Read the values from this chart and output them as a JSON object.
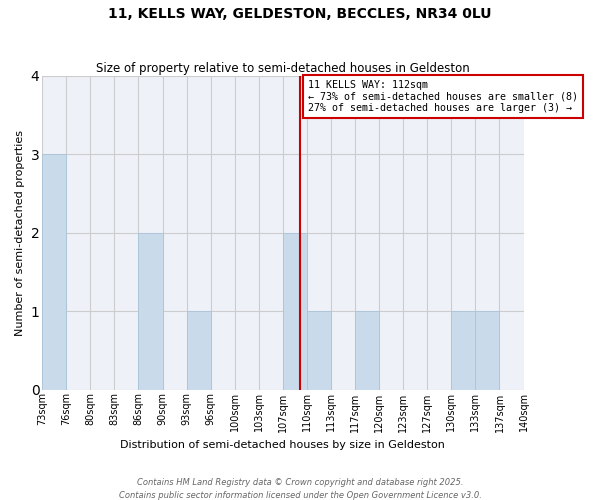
{
  "title1": "11, KELLS WAY, GELDESTON, BECCLES, NR34 0LU",
  "title2": "Size of property relative to semi-detached houses in Geldeston",
  "xlabel": "Distribution of semi-detached houses by size in Geldeston",
  "ylabel": "Number of semi-detached properties",
  "bins": [
    "73sqm",
    "76sqm",
    "80sqm",
    "83sqm",
    "86sqm",
    "90sqm",
    "93sqm",
    "96sqm",
    "100sqm",
    "103sqm",
    "107sqm",
    "110sqm",
    "113sqm",
    "117sqm",
    "120sqm",
    "123sqm",
    "127sqm",
    "130sqm",
    "133sqm",
    "137sqm",
    "140sqm"
  ],
  "heights": [
    3,
    0,
    0,
    0,
    2,
    0,
    1,
    0,
    0,
    0,
    2,
    1,
    0,
    1,
    0,
    0,
    0,
    1,
    1,
    0,
    0
  ],
  "property_size_idx": 10.73,
  "bar_color": "#c9daea",
  "bar_edge_color": "#aec6d8",
  "red_line_color": "#cc0000",
  "grid_color": "#cccccc",
  "background_color": "#eef2f8",
  "ylim": [
    0,
    4
  ],
  "yticks": [
    0,
    1,
    2,
    3,
    4
  ],
  "annotation_title": "11 KELLS WAY: 112sqm",
  "annotation_line1": "← 73% of semi-detached houses are smaller (8)",
  "annotation_line2": "27% of semi-detached houses are larger (3) →",
  "footer1": "Contains HM Land Registry data © Crown copyright and database right 2025.",
  "footer2": "Contains public sector information licensed under the Open Government Licence v3.0."
}
